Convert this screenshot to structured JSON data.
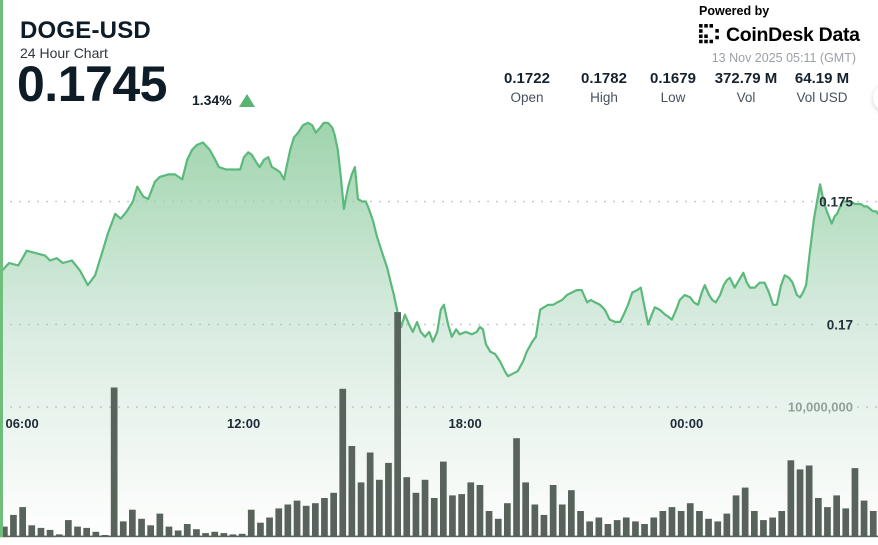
{
  "header": {
    "symbol": "DOGE-USD",
    "subtitle": "24 Hour Chart",
    "price": "0.1745",
    "change_percent": "1.34%",
    "change_direction": "up"
  },
  "powered_by": {
    "label": "Powered by",
    "brand": "CoinDesk Data",
    "timestamp": "13 Nov 2025 05:11 (GMT)"
  },
  "stats": [
    {
      "value": "0.1722",
      "label": "Open"
    },
    {
      "value": "0.1782",
      "label": "High"
    },
    {
      "value": "0.1679",
      "label": "Low"
    },
    {
      "value": "372.79 M",
      "label": "Vol"
    },
    {
      "value": "64.19 M",
      "label": "Vol USD"
    }
  ],
  "chart_data": {
    "type": "line+bar",
    "title": "DOGE-USD 24 Hour Chart",
    "x_axis": {
      "unit": "time",
      "span_minutes": 1440,
      "ticks": [
        {
          "label": "06:00",
          "t": 49
        },
        {
          "label": "12:00",
          "t": 409
        },
        {
          "label": "18:00",
          "t": 769
        },
        {
          "label": "00:00",
          "t": 1129
        }
      ]
    },
    "y_axis": {
      "unit": "USD",
      "gridlines": [
        0.175,
        0.17
      ],
      "labels": [
        "0.175",
        "0.17"
      ]
    },
    "volume_axis": {
      "gridline_value": 10000000,
      "gridline_label": "10,000,000"
    },
    "colors": {
      "line": "#5bb97b",
      "fill_top": "#9cd3aa",
      "fill_mid": "#d9ece1",
      "fill_bottom": "#ffffff",
      "bars": "#57635b",
      "grid": "#b6bdc2",
      "accent": "#57b471",
      "left_strip": "#6fbe7c"
    },
    "price_series": [
      [
        0,
        0.1721
      ],
      [
        15,
        0.1725
      ],
      [
        30,
        0.1724
      ],
      [
        44,
        0.173
      ],
      [
        59,
        0.1729
      ],
      [
        74,
        0.1728
      ],
      [
        82,
        0.1726
      ],
      [
        93,
        0.1727
      ],
      [
        103,
        0.1725
      ],
      [
        118,
        0.1726
      ],
      [
        131,
        0.1722
      ],
      [
        144,
        0.1716
      ],
      [
        156,
        0.172
      ],
      [
        166,
        0.1728
      ],
      [
        177,
        0.1737
      ],
      [
        189,
        0.1745
      ],
      [
        198,
        0.1743
      ],
      [
        208,
        0.1746
      ],
      [
        218,
        0.175
      ],
      [
        225,
        0.1756
      ],
      [
        235,
        0.1752
      ],
      [
        243,
        0.1751
      ],
      [
        254,
        0.1758
      ],
      [
        262,
        0.176
      ],
      [
        276,
        0.1761
      ],
      [
        287,
        0.1761
      ],
      [
        299,
        0.1759
      ],
      [
        307,
        0.1767
      ],
      [
        315,
        0.1771
      ],
      [
        323,
        0.1773
      ],
      [
        333,
        0.1774
      ],
      [
        344,
        0.1771
      ],
      [
        353,
        0.1767
      ],
      [
        359,
        0.1764
      ],
      [
        371,
        0.1763
      ],
      [
        382,
        0.1763
      ],
      [
        394,
        0.1763
      ],
      [
        400,
        0.1768
      ],
      [
        407,
        0.177
      ],
      [
        413,
        0.1769
      ],
      [
        420,
        0.1766
      ],
      [
        426,
        0.1764
      ],
      [
        433,
        0.1767
      ],
      [
        440,
        0.1768
      ],
      [
        446,
        0.1764
      ],
      [
        453,
        0.1763
      ],
      [
        459,
        0.1762
      ],
      [
        466,
        0.1759
      ],
      [
        469,
        0.1763
      ],
      [
        476,
        0.1771
      ],
      [
        482,
        0.1776
      ],
      [
        489,
        0.1778
      ],
      [
        497,
        0.1781
      ],
      [
        505,
        0.1782
      ],
      [
        512,
        0.1781
      ],
      [
        518,
        0.1778
      ],
      [
        525,
        0.178
      ],
      [
        531,
        0.1782
      ],
      [
        538,
        0.1782
      ],
      [
        545,
        0.178
      ],
      [
        549,
        0.1777
      ],
      [
        554,
        0.1771
      ],
      [
        559,
        0.176
      ],
      [
        564,
        0.1747
      ],
      [
        571,
        0.1756
      ],
      [
        577,
        0.1761
      ],
      [
        582,
        0.1764
      ],
      [
        587,
        0.1751
      ],
      [
        594,
        0.175
      ],
      [
        600,
        0.175
      ],
      [
        605,
        0.1747
      ],
      [
        612,
        0.1742
      ],
      [
        618,
        0.1736
      ],
      [
        627,
        0.1729
      ],
      [
        635,
        0.1723
      ],
      [
        641,
        0.1717
      ],
      [
        646,
        0.1712
      ],
      [
        653,
        0.1704
      ],
      [
        658,
        0.1699
      ],
      [
        664,
        0.1704
      ],
      [
        671,
        0.17
      ],
      [
        677,
        0.1697
      ],
      [
        684,
        0.1701
      ],
      [
        690,
        0.1697
      ],
      [
        697,
        0.1695
      ],
      [
        704,
        0.1697
      ],
      [
        710,
        0.1693
      ],
      [
        717,
        0.1697
      ],
      [
        723,
        0.1706
      ],
      [
        728,
        0.1708
      ],
      [
        735,
        0.17
      ],
      [
        741,
        0.1695
      ],
      [
        748,
        0.1698
      ],
      [
        754,
        0.1696
      ],
      [
        764,
        0.1697
      ],
      [
        774,
        0.1696
      ],
      [
        782,
        0.1697
      ],
      [
        787,
        0.1699
      ],
      [
        792,
        0.1698
      ],
      [
        797,
        0.1692
      ],
      [
        804,
        0.1689
      ],
      [
        812,
        0.1688
      ],
      [
        820,
        0.1685
      ],
      [
        828,
        0.1681
      ],
      [
        833,
        0.1679
      ],
      [
        841,
        0.168
      ],
      [
        849,
        0.1681
      ],
      [
        858,
        0.1685
      ],
      [
        864,
        0.1689
      ],
      [
        873,
        0.1693
      ],
      [
        879,
        0.1695
      ],
      [
        886,
        0.1706
      ],
      [
        892,
        0.1707
      ],
      [
        899,
        0.1708
      ],
      [
        907,
        0.1708
      ],
      [
        914,
        0.1709
      ],
      [
        922,
        0.171
      ],
      [
        930,
        0.1712
      ],
      [
        938,
        0.1713
      ],
      [
        946,
        0.1714
      ],
      [
        954,
        0.1714
      ],
      [
        963,
        0.1709
      ],
      [
        969,
        0.171
      ],
      [
        976,
        0.1709
      ],
      [
        984,
        0.1708
      ],
      [
        992,
        0.1706
      ],
      [
        1000,
        0.1702
      ],
      [
        1009,
        0.1701
      ],
      [
        1017,
        0.1701
      ],
      [
        1023,
        0.1704
      ],
      [
        1030,
        0.1708
      ],
      [
        1037,
        0.1713
      ],
      [
        1045,
        0.1714
      ],
      [
        1051,
        0.1715
      ],
      [
        1058,
        0.1706
      ],
      [
        1063,
        0.17
      ],
      [
        1069,
        0.1704
      ],
      [
        1074,
        0.1707
      ],
      [
        1082,
        0.1706
      ],
      [
        1091,
        0.1704
      ],
      [
        1097,
        0.1703
      ],
      [
        1102,
        0.1702
      ],
      [
        1109,
        0.1706
      ],
      [
        1115,
        0.171
      ],
      [
        1123,
        0.1712
      ],
      [
        1132,
        0.1711
      ],
      [
        1138,
        0.1709
      ],
      [
        1145,
        0.1708
      ],
      [
        1151,
        0.1713
      ],
      [
        1156,
        0.1716
      ],
      [
        1163,
        0.1712
      ],
      [
        1168,
        0.171
      ],
      [
        1174,
        0.1709
      ],
      [
        1181,
        0.1712
      ],
      [
        1187,
        0.1716
      ],
      [
        1192,
        0.1718
      ],
      [
        1197,
        0.1719
      ],
      [
        1205,
        0.1715
      ],
      [
        1212,
        0.1718
      ],
      [
        1219,
        0.1721
      ],
      [
        1225,
        0.1717
      ],
      [
        1230,
        0.1715
      ],
      [
        1238,
        0.1715
      ],
      [
        1246,
        0.1717
      ],
      [
        1254,
        0.1717
      ],
      [
        1261,
        0.1713
      ],
      [
        1268,
        0.1708
      ],
      [
        1274,
        0.1708
      ],
      [
        1281,
        0.1716
      ],
      [
        1287,
        0.172
      ],
      [
        1294,
        0.1719
      ],
      [
        1300,
        0.1717
      ],
      [
        1307,
        0.1712
      ],
      [
        1312,
        0.1711
      ],
      [
        1317,
        0.1713
      ],
      [
        1322,
        0.1716
      ],
      [
        1328,
        0.1729
      ],
      [
        1335,
        0.1743
      ],
      [
        1340,
        0.175
      ],
      [
        1345,
        0.1757
      ],
      [
        1351,
        0.175
      ],
      [
        1356,
        0.1746
      ],
      [
        1361,
        0.1743
      ],
      [
        1364,
        0.1741
      ],
      [
        1369,
        0.1744
      ],
      [
        1373,
        0.1745
      ],
      [
        1378,
        0.1748
      ],
      [
        1382,
        0.175
      ],
      [
        1389,
        0.175
      ],
      [
        1395,
        0.175
      ],
      [
        1402,
        0.1749
      ],
      [
        1407,
        0.1749
      ],
      [
        1412,
        0.1749
      ],
      [
        1417,
        0.1748
      ],
      [
        1422,
        0.1748
      ],
      [
        1427,
        0.1747
      ],
      [
        1432,
        0.1746
      ],
      [
        1437,
        0.1746
      ],
      [
        1440,
        0.1745
      ]
    ],
    "volume_series_millions": [
      0.8,
      1.7,
      2.3,
      0.9,
      0.7,
      0.55,
      0.2,
      1.3,
      0.8,
      0.7,
      0.4,
      0.15,
      11.5,
      1.2,
      2.1,
      1.4,
      0.9,
      1.8,
      0.8,
      0.5,
      1.0,
      0.6,
      0.3,
      0.4,
      0.3,
      0.2,
      0.25,
      2.1,
      1.1,
      1.5,
      2.2,
      2.5,
      2.8,
      2.4,
      2.6,
      3.0,
      3.4,
      11.4,
      7.0,
      4.2,
      6.5,
      4.4,
      5.7,
      17.3,
      4.6,
      3.4,
      4.4,
      3.0,
      5.8,
      3.2,
      3.3,
      4.2,
      4.0,
      2.0,
      1.4,
      2.6,
      7.6,
      4.2,
      2.5,
      1.7,
      4.0,
      2.5,
      3.6,
      2.0,
      1.2,
      1.5,
      1.0,
      1.3,
      1.5,
      1.2,
      1.0,
      1.5,
      2.0,
      2.3,
      2.0,
      2.6,
      2.0,
      1.4,
      1.2,
      1.8,
      3.2,
      3.8,
      2.0,
      1.3,
      1.5,
      2.0,
      5.9,
      5.2,
      5.5,
      3.0,
      2.3,
      3.2,
      2.2,
      5.3,
      2.8,
      2.0
    ]
  }
}
